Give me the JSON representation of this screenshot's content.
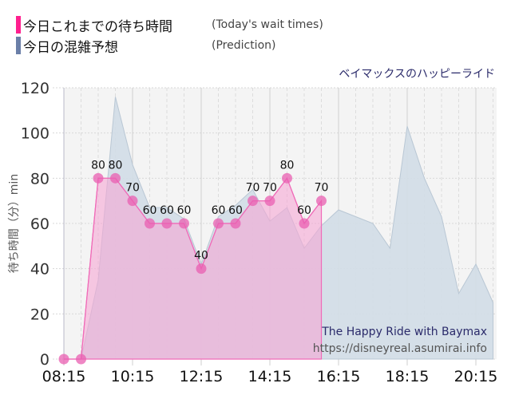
{
  "legend": {
    "items": [
      {
        "label_jp": "今日これまでの待ち時間",
        "label_en": "(Today's wait times)",
        "color": "#ff1f8e"
      },
      {
        "label_jp": "今日の混雑予想",
        "label_en": "(Prediction)",
        "color": "#6b7fa8"
      }
    ]
  },
  "ride_title": "ベイマックスのハッピーライド",
  "watermark": {
    "line1": "The Happy Ride with Baymax",
    "line2": "https://disneyreal.asumirai.info"
  },
  "chart_data": {
    "type": "area",
    "title": "ベイマックスのハッピーライド",
    "xlabel": "",
    "ylabel": "待ち時間（分）min",
    "ylim": [
      0,
      120
    ],
    "yticks": [
      0,
      20,
      40,
      60,
      80,
      100,
      120
    ],
    "xticks": [
      "08:15",
      "10:15",
      "12:15",
      "14:15",
      "16:15",
      "18:15",
      "20:15"
    ],
    "grid": true,
    "legend_position": "top-left",
    "x": [
      "08:15",
      "08:45",
      "09:15",
      "09:45",
      "10:15",
      "10:45",
      "11:15",
      "11:45",
      "12:15",
      "12:45",
      "13:15",
      "13:45",
      "14:15",
      "14:45",
      "15:15",
      "15:45",
      "16:15",
      "16:45",
      "17:15",
      "17:45",
      "18:15",
      "18:45",
      "19:15",
      "19:45",
      "20:15",
      "20:45"
    ],
    "series": [
      {
        "name": "今日これまでの待ち時間 (Today's wait times)",
        "color": "#f06bb8",
        "values": [
          0,
          0,
          80,
          80,
          70,
          60,
          60,
          60,
          40,
          60,
          60,
          70,
          70,
          80,
          60,
          70
        ],
        "labels": [
          "",
          "",
          "80",
          "80",
          "70",
          "60",
          "60",
          "60",
          "40",
          "60",
          "60",
          "70",
          "70",
          "80",
          "60",
          "70"
        ]
      },
      {
        "name": "今日の混雑予想 (Prediction)",
        "color": "#c3d3e0",
        "values": [
          0,
          0,
          35,
          116,
          86,
          67,
          67,
          62,
          42,
          63,
          68,
          75,
          61,
          67,
          49,
          59,
          66,
          63,
          60,
          49,
          103,
          80,
          63,
          29,
          42,
          25
        ]
      }
    ]
  }
}
